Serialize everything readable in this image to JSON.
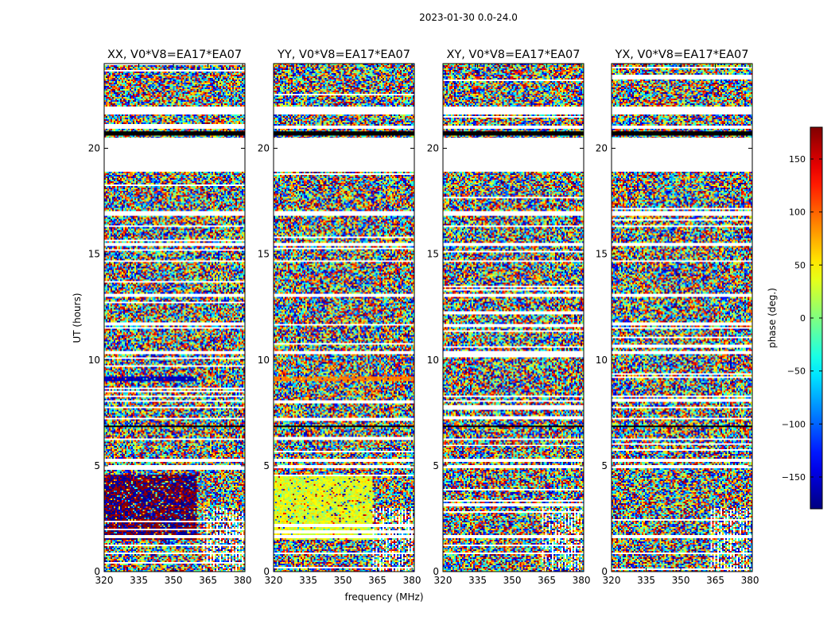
{
  "chart_data": {
    "type": "heatmap",
    "suptitle": "2023-01-30 0.0-24.0",
    "xlabel": "frequency (MHz)",
    "ylabel": "UT (hours)",
    "xlim": [
      320,
      381
    ],
    "ylim": [
      0,
      24
    ],
    "xticks": [
      320,
      335,
      350,
      365,
      380
    ],
    "yticks": [
      0,
      5,
      10,
      15,
      20
    ],
    "panels": [
      {
        "title": "XX, V0*V8=EA17*EA07",
        "pattern": "noise",
        "features": [
          {
            "ut_range": [
              1.5,
              4.6
            ],
            "freq_range": [
              320,
              360
            ],
            "phase_values": [
              175,
              -170
            ],
            "description": "coherent red/blue block"
          },
          {
            "ut_range": [
              9.0,
              9.2
            ],
            "freq_range": [
              320,
              360
            ],
            "phase_values": [
              -160
            ],
            "description": "blue band"
          }
        ]
      },
      {
        "title": "YY, V0*V8=EA17*EA07",
        "pattern": "noise",
        "features": [
          {
            "ut_range": [
              1.5,
              4.6
            ],
            "freq_range": [
              320,
              363
            ],
            "phase_values": [
              50,
              20
            ],
            "description": "coherent yellow/green block"
          },
          {
            "ut_range": [
              9.0,
              9.2
            ],
            "freq_range": [
              320,
              381
            ],
            "phase_values": [
              90
            ],
            "description": "orange band"
          }
        ]
      },
      {
        "title": "XY, V0*V8=EA17*EA07",
        "pattern": "noise",
        "features": []
      },
      {
        "title": "YX, V0*V8=EA17*EA07",
        "pattern": "noise",
        "features": []
      }
    ],
    "flagged_ut_ranges": [
      [
        18.9,
        20.5
      ],
      [
        21.6,
        22.0
      ],
      [
        20.9,
        21.1
      ],
      [
        16.8,
        17.0
      ],
      [
        15.4,
        15.5
      ],
      [
        14.6,
        14.7
      ],
      [
        13.0,
        13.1
      ],
      [
        11.6,
        11.7
      ],
      [
        10.3,
        10.4
      ],
      [
        8.0,
        8.1
      ],
      [
        7.2,
        7.3
      ],
      [
        6.2,
        6.3
      ],
      [
        5.2,
        5.3
      ],
      [
        4.9,
        5.0
      ],
      [
        1.6,
        1.7
      ],
      [
        0.8,
        0.9
      ]
    ],
    "black_band_ut": [
      20.6,
      20.8
    ],
    "colorbar": {
      "label": "phase (deg.)",
      "range": [
        -180,
        180
      ],
      "ticks": [
        150,
        100,
        50,
        0,
        -50,
        -100,
        -150
      ],
      "tick_labels": [
        "150",
        "100",
        "50",
        "0",
        "−50",
        "−100",
        "−150"
      ],
      "colormap": "jet"
    }
  }
}
